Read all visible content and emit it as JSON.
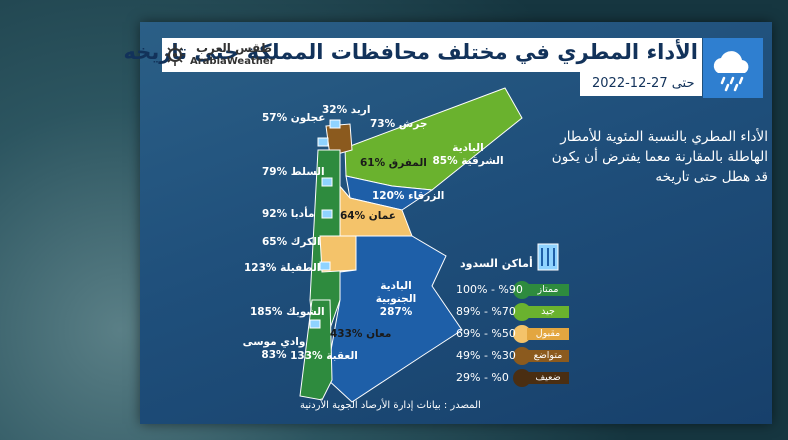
{
  "header": {
    "title": "الأداء المطري في مختلف محافظات المملكة حتى تاريخه",
    "date": "حتى 27-12-2022",
    "brand_ar": "طقس العرب",
    "brand_en": "ArabiaWeather"
  },
  "description": "الأداء المطري بالنسبة المئوية للأمطار الهاطلة بالمقارنة معما يفترض أن يكون قد هطل حتى تاريخه",
  "map": {
    "labels": [
      "اربد %32",
      "جرش %73",
      "عجلون %57",
      "البادية الشرقية %85",
      "المفرق %61",
      "السلط %79",
      "الزرقاء %120",
      "مأدبا %92",
      "عمان %64",
      "الكرك %65",
      "الطفيلة %123",
      "البادية الجنوبية %287",
      "الشوبك %185",
      "معان %433",
      "وادي موسى %83",
      "العقبة %133"
    ]
  },
  "legend": {
    "title": "أماكن السدود",
    "items": [
      {
        "range": "100% - %90",
        "name": "ممتاز"
      },
      {
        "range": "89% - %70",
        "name": "جيد"
      },
      {
        "range": "69% - %50",
        "name": "مقبول"
      },
      {
        "range": "49% - %30",
        "name": "متواضع"
      },
      {
        "range": "29% - %0",
        "name": "ضعيف"
      }
    ]
  },
  "source": "المصدر : بيانات إدارة الأرصاد الجوية الأردنية"
}
